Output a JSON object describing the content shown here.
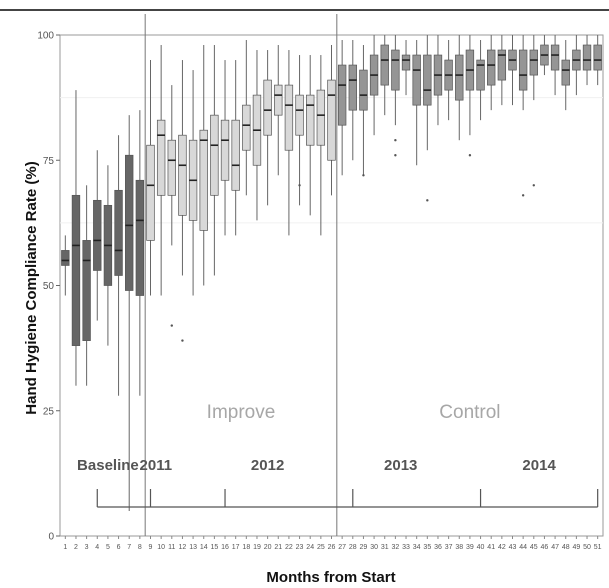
{
  "chart_data": {
    "type": "boxplot",
    "title": "",
    "xlabel": "Months from Start",
    "ylabel": "Hand Hygiene Compliance Rate (%)",
    "ylim": [
      0,
      100
    ],
    "y_ticks": [
      0,
      25,
      50,
      75,
      100
    ],
    "x_ticks": [
      1,
      2,
      3,
      4,
      5,
      6,
      7,
      8,
      9,
      10,
      11,
      12,
      13,
      14,
      15,
      16,
      17,
      18,
      19,
      20,
      21,
      22,
      23,
      24,
      25,
      26,
      27,
      28,
      29,
      30,
      31,
      32,
      33,
      34,
      35,
      36,
      37,
      38,
      39,
      40,
      41,
      42,
      43,
      44,
      45,
      46,
      47,
      48,
      49,
      50,
      51
    ],
    "grid": false,
    "legend": "none",
    "phase_colors": {
      "Baseline": "#666666",
      "Improve": "#d8d8d8",
      "Control": "#959595"
    },
    "phase_labels": [
      {
        "text": "Baseline",
        "x": 5.0
      },
      {
        "text": "Improve",
        "x": 17.5
      },
      {
        "text": "Control",
        "x": 39.0
      }
    ],
    "phase_dividers_x": [
      8.5,
      26.5
    ],
    "year_labels": [
      {
        "text": "2011",
        "x": 9.5
      },
      {
        "text": "2012",
        "x": 20.0
      },
      {
        "text": "2013",
        "x": 32.5
      },
      {
        "text": "2014",
        "x": 45.5
      }
    ],
    "year_ticks_x": [
      4,
      9,
      16,
      28,
      40,
      51
    ],
    "series": [
      {
        "x": 1,
        "phase": "Baseline",
        "whisker_low": 48,
        "q1": 54,
        "median": 55,
        "q3": 57,
        "whisker_high": 60,
        "outliers": []
      },
      {
        "x": 2,
        "phase": "Baseline",
        "whisker_low": 30,
        "q1": 38,
        "median": 58,
        "q3": 68,
        "whisker_high": 89,
        "outliers": []
      },
      {
        "x": 3,
        "phase": "Baseline",
        "whisker_low": 30,
        "q1": 39,
        "median": 55,
        "q3": 59,
        "whisker_high": 70,
        "outliers": []
      },
      {
        "x": 4,
        "phase": "Baseline",
        "whisker_low": 43,
        "q1": 53,
        "median": 59,
        "q3": 67,
        "whisker_high": 77,
        "outliers": []
      },
      {
        "x": 5,
        "phase": "Baseline",
        "whisker_low": 38,
        "q1": 50,
        "median": 58,
        "q3": 66,
        "whisker_high": 74,
        "outliers": []
      },
      {
        "x": 6,
        "phase": "Baseline",
        "whisker_low": 28,
        "q1": 52,
        "median": 57,
        "q3": 69,
        "whisker_high": 80,
        "outliers": []
      },
      {
        "x": 7,
        "phase": "Baseline",
        "whisker_low": 5,
        "q1": 49,
        "median": 62,
        "q3": 76,
        "whisker_high": 84,
        "outliers": []
      },
      {
        "x": 8,
        "phase": "Baseline",
        "whisker_low": 28,
        "q1": 48,
        "median": 63,
        "q3": 71,
        "whisker_high": 85,
        "outliers": []
      },
      {
        "x": 9,
        "phase": "Improve",
        "whisker_low": 48,
        "q1": 59,
        "median": 70,
        "q3": 78,
        "whisker_high": 95,
        "outliers": []
      },
      {
        "x": 10,
        "phase": "Improve",
        "whisker_low": 48,
        "q1": 68,
        "median": 80,
        "q3": 83,
        "whisker_high": 98,
        "outliers": []
      },
      {
        "x": 11,
        "phase": "Improve",
        "whisker_low": 58,
        "q1": 68,
        "median": 75,
        "q3": 79,
        "whisker_high": 90,
        "outliers": [
          42
        ]
      },
      {
        "x": 12,
        "phase": "Improve",
        "whisker_low": 52,
        "q1": 64,
        "median": 74,
        "q3": 80,
        "whisker_high": 95,
        "outliers": [
          39
        ]
      },
      {
        "x": 13,
        "phase": "Improve",
        "whisker_low": 48,
        "q1": 63,
        "median": 71,
        "q3": 79,
        "whisker_high": 93,
        "outliers": []
      },
      {
        "x": 14,
        "phase": "Improve",
        "whisker_low": 50,
        "q1": 61,
        "median": 79,
        "q3": 81,
        "whisker_high": 98,
        "outliers": []
      },
      {
        "x": 15,
        "phase": "Improve",
        "whisker_low": 52,
        "q1": 68,
        "median": 78,
        "q3": 84,
        "whisker_high": 98,
        "outliers": []
      },
      {
        "x": 16,
        "phase": "Improve",
        "whisker_low": 60,
        "q1": 71,
        "median": 79,
        "q3": 83,
        "whisker_high": 95,
        "outliers": []
      },
      {
        "x": 17,
        "phase": "Improve",
        "whisker_low": 60,
        "q1": 69,
        "median": 74,
        "q3": 83,
        "whisker_high": 95,
        "outliers": []
      },
      {
        "x": 18,
        "phase": "Improve",
        "whisker_low": 68,
        "q1": 77,
        "median": 82,
        "q3": 86,
        "whisker_high": 99,
        "outliers": []
      },
      {
        "x": 19,
        "phase": "Improve",
        "whisker_low": 63,
        "q1": 74,
        "median": 81,
        "q3": 88,
        "whisker_high": 97,
        "outliers": []
      },
      {
        "x": 20,
        "phase": "Improve",
        "whisker_low": 66,
        "q1": 80,
        "median": 85,
        "q3": 91,
        "whisker_high": 97,
        "outliers": []
      },
      {
        "x": 21,
        "phase": "Improve",
        "whisker_low": 72,
        "q1": 84,
        "median": 88,
        "q3": 90,
        "whisker_high": 98,
        "outliers": []
      },
      {
        "x": 22,
        "phase": "Improve",
        "whisker_low": 60,
        "q1": 77,
        "median": 86,
        "q3": 90,
        "whisker_high": 97,
        "outliers": []
      },
      {
        "x": 23,
        "phase": "Improve",
        "whisker_low": 66,
        "q1": 80,
        "median": 85,
        "q3": 88,
        "whisker_high": 96,
        "outliers": [
          70
        ]
      },
      {
        "x": 24,
        "phase": "Improve",
        "whisker_low": 64,
        "q1": 78,
        "median": 86,
        "q3": 88,
        "whisker_high": 96,
        "outliers": []
      },
      {
        "x": 25,
        "phase": "Improve",
        "whisker_low": 60,
        "q1": 78,
        "median": 84,
        "q3": 89,
        "whisker_high": 96,
        "outliers": []
      },
      {
        "x": 26,
        "phase": "Improve",
        "whisker_low": 68,
        "q1": 75,
        "median": 88,
        "q3": 91,
        "whisker_high": 98,
        "outliers": []
      },
      {
        "x": 27,
        "phase": "Control",
        "whisker_low": 72,
        "q1": 82,
        "median": 90,
        "q3": 94,
        "whisker_high": 99,
        "outliers": []
      },
      {
        "x": 28,
        "phase": "Control",
        "whisker_low": 75,
        "q1": 85,
        "median": 91,
        "q3": 94,
        "whisker_high": 99,
        "outliers": []
      },
      {
        "x": 29,
        "phase": "Control",
        "whisker_low": 72,
        "q1": 85,
        "median": 88,
        "q3": 93,
        "whisker_high": 98,
        "outliers": [
          72
        ]
      },
      {
        "x": 30,
        "phase": "Control",
        "whisker_low": 80,
        "q1": 88,
        "median": 92,
        "q3": 96,
        "whisker_high": 100,
        "outliers": []
      },
      {
        "x": 31,
        "phase": "Control",
        "whisker_low": 84,
        "q1": 90,
        "median": 95,
        "q3": 98,
        "whisker_high": 100,
        "outliers": []
      },
      {
        "x": 32,
        "phase": "Control",
        "whisker_low": 82,
        "q1": 89,
        "median": 95,
        "q3": 97,
        "whisker_high": 100,
        "outliers": [
          79,
          76
        ]
      },
      {
        "x": 33,
        "phase": "Control",
        "whisker_low": 88,
        "q1": 93,
        "median": 95,
        "q3": 96,
        "whisker_high": 99,
        "outliers": []
      },
      {
        "x": 34,
        "phase": "Control",
        "whisker_low": 74,
        "q1": 86,
        "median": 93,
        "q3": 96,
        "whisker_high": 99,
        "outliers": []
      },
      {
        "x": 35,
        "phase": "Control",
        "whisker_low": 77,
        "q1": 86,
        "median": 89,
        "q3": 96,
        "whisker_high": 100,
        "outliers": [
          67
        ]
      },
      {
        "x": 36,
        "phase": "Control",
        "whisker_low": 82,
        "q1": 88,
        "median": 92,
        "q3": 96,
        "whisker_high": 100,
        "outliers": []
      },
      {
        "x": 37,
        "phase": "Control",
        "whisker_low": 83,
        "q1": 89,
        "median": 92,
        "q3": 95,
        "whisker_high": 99,
        "outliers": []
      },
      {
        "x": 38,
        "phase": "Control",
        "whisker_low": 79,
        "q1": 87,
        "median": 92,
        "q3": 96,
        "whisker_high": 100,
        "outliers": []
      },
      {
        "x": 39,
        "phase": "Control",
        "whisker_low": 80,
        "q1": 89,
        "median": 93,
        "q3": 97,
        "whisker_high": 100,
        "outliers": [
          76
        ]
      },
      {
        "x": 40,
        "phase": "Control",
        "whisker_low": 83,
        "q1": 89,
        "median": 94,
        "q3": 95,
        "whisker_high": 99,
        "outliers": []
      },
      {
        "x": 41,
        "phase": "Control",
        "whisker_low": 85,
        "q1": 90,
        "median": 94,
        "q3": 97,
        "whisker_high": 100,
        "outliers": []
      },
      {
        "x": 42,
        "phase": "Control",
        "whisker_low": 86,
        "q1": 91,
        "median": 96,
        "q3": 97,
        "whisker_high": 100,
        "outliers": []
      },
      {
        "x": 43,
        "phase": "Control",
        "whisker_low": 86,
        "q1": 93,
        "median": 95,
        "q3": 97,
        "whisker_high": 100,
        "outliers": []
      },
      {
        "x": 44,
        "phase": "Control",
        "whisker_low": 85,
        "q1": 89,
        "median": 92,
        "q3": 97,
        "whisker_high": 100,
        "outliers": [
          68
        ]
      },
      {
        "x": 45,
        "phase": "Control",
        "whisker_low": 87,
        "q1": 92,
        "median": 95,
        "q3": 97,
        "whisker_high": 100,
        "outliers": [
          70
        ]
      },
      {
        "x": 46,
        "phase": "Control",
        "whisker_low": 92,
        "q1": 94,
        "median": 96,
        "q3": 98,
        "whisker_high": 100,
        "outliers": []
      },
      {
        "x": 47,
        "phase": "Control",
        "whisker_low": 88,
        "q1": 93,
        "median": 96,
        "q3": 98,
        "whisker_high": 100,
        "outliers": []
      },
      {
        "x": 48,
        "phase": "Control",
        "whisker_low": 85,
        "q1": 90,
        "median": 93,
        "q3": 95,
        "whisker_high": 99,
        "outliers": []
      },
      {
        "x": 49,
        "phase": "Control",
        "whisker_low": 88,
        "q1": 93,
        "median": 95,
        "q3": 97,
        "whisker_high": 100,
        "outliers": []
      },
      {
        "x": 50,
        "phase": "Control",
        "whisker_low": 90,
        "q1": 93,
        "median": 95,
        "q3": 98,
        "whisker_high": 100,
        "outliers": []
      },
      {
        "x": 51,
        "phase": "Control",
        "whisker_low": 90,
        "q1": 93,
        "median": 95,
        "q3": 98,
        "whisker_high": 100,
        "outliers": []
      }
    ]
  }
}
